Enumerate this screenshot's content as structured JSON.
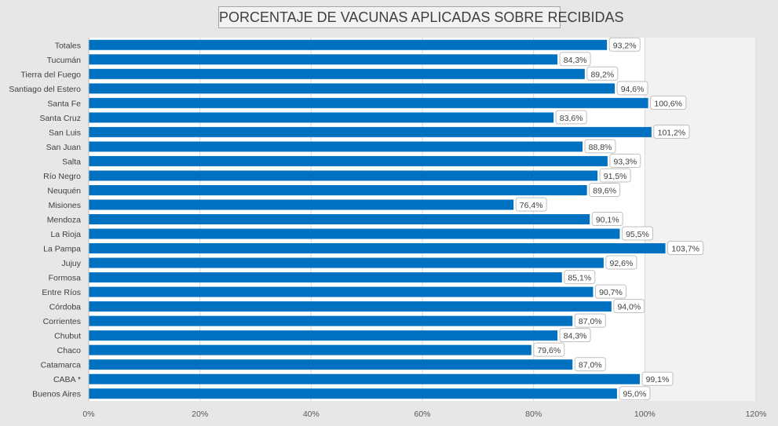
{
  "chart_data": {
    "type": "bar",
    "orientation": "horizontal",
    "title": "PORCENTAJE DE VACUNAS APLICADAS SOBRE RECIBIDAS",
    "xlabel": "",
    "ylabel": "",
    "xlim": [
      0,
      120
    ],
    "x_ticks": [
      "0%",
      "20%",
      "40%",
      "60%",
      "80%",
      "100%",
      "120%"
    ],
    "grid": true,
    "legend": "none",
    "bar_color": "#0070c0",
    "categories": [
      "Totales",
      "Tucumán",
      "Tierra del Fuego",
      "Santiago del Estero",
      "Santa Fe",
      "Santa Cruz",
      "San Luis",
      "San Juan",
      "Salta",
      "Río Negro",
      "Neuquén",
      "Misiones",
      "Mendoza",
      "La Rioja",
      "La Pampa",
      "Jujuy",
      "Formosa",
      "Entre Ríos",
      "Córdoba",
      "Corrientes",
      "Chubut",
      "Chaco",
      "Catamarca",
      "CABA *",
      "Buenos Aires"
    ],
    "values": [
      93.2,
      84.3,
      89.2,
      94.6,
      100.6,
      83.6,
      101.2,
      88.8,
      93.3,
      91.5,
      89.6,
      76.4,
      90.1,
      95.5,
      103.7,
      92.6,
      85.1,
      90.7,
      94.0,
      87.0,
      84.3,
      79.6,
      87.0,
      99.1,
      95.0
    ],
    "data_labels": [
      "93,2%",
      "84,3%",
      "89,2%",
      "94,6%",
      "100,6%",
      "83,6%",
      "101,2%",
      "88,8%",
      "93,3%",
      "91,5%",
      "89,6%",
      "76,4%",
      "90,1%",
      "95,5%",
      "103,7%",
      "92,6%",
      "85,1%",
      "90,7%",
      "94,0%",
      "87,0%",
      "84,3%",
      "79,6%",
      "87,0%",
      "99,1%",
      "95,0%"
    ]
  }
}
